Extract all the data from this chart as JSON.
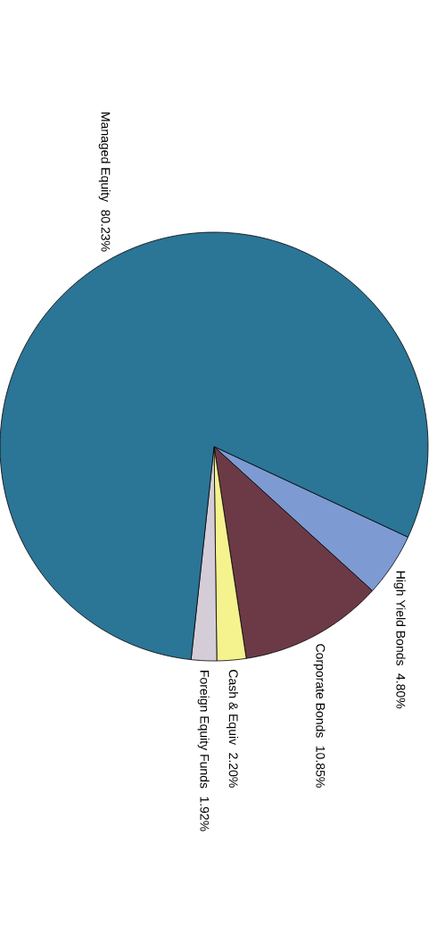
{
  "chart_data": {
    "type": "pie",
    "categories": [
      "High Yield Bonds",
      "Corporate Bonds",
      "Cash & Equiv",
      "Foreign Equity Funds",
      "Managed Equity"
    ],
    "values": [
      4.8,
      10.85,
      2.2,
      1.92,
      80.23
    ],
    "value_labels": [
      "4.80%",
      "10.85%",
      "2.20%",
      "1.92%",
      "80.23%"
    ],
    "colors": [
      "#7d9bd2",
      "#6c3a47",
      "#f4f38e",
      "#d4cdd8",
      "#2b7596"
    ]
  }
}
